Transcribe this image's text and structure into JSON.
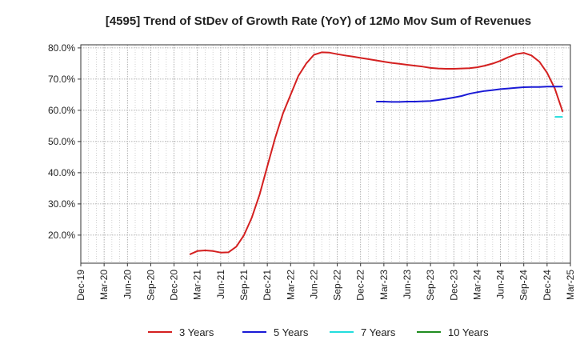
{
  "chart_data": {
    "type": "line",
    "title": "[4595]  Trend of StDev of Growth Rate (YoY) of 12Mo Mov Sum of Revenues",
    "xlabel": "",
    "ylabel": "",
    "categories": [
      "Dec-19",
      "Mar-20",
      "Jun-20",
      "Sep-20",
      "Dec-20",
      "Mar-21",
      "Jun-21",
      "Sep-21",
      "Dec-21",
      "Mar-22",
      "Jun-22",
      "Sep-22",
      "Dec-22",
      "Mar-23",
      "Jun-23",
      "Sep-23",
      "Dec-23",
      "Mar-24",
      "Jun-24",
      "Sep-24",
      "Dec-24",
      "Mar-25"
    ],
    "ylim": [
      11,
      81
    ],
    "yticks": [
      20,
      30,
      40,
      50,
      60,
      70,
      80
    ],
    "ytick_labels": [
      "20.0%",
      "30.0%",
      "40.0%",
      "50.0%",
      "60.0%",
      "70.0%",
      "80.0%"
    ],
    "grid": true,
    "legend_position": "bottom",
    "series": [
      {
        "name": "3 Years",
        "color": "#d42020",
        "points": [
          [
            4.67,
            13.8
          ],
          [
            5.0,
            14.9
          ],
          [
            5.33,
            15.1
          ],
          [
            5.67,
            14.9
          ],
          [
            6.0,
            14.4
          ],
          [
            6.33,
            14.5
          ],
          [
            6.67,
            16.3
          ],
          [
            7.0,
            20.0
          ],
          [
            7.33,
            25.5
          ],
          [
            7.67,
            33.0
          ],
          [
            8.0,
            42.0
          ],
          [
            8.33,
            51.0
          ],
          [
            8.67,
            59.0
          ],
          [
            9.0,
            65.0
          ],
          [
            9.33,
            71.0
          ],
          [
            9.67,
            75.0
          ],
          [
            10.0,
            77.8
          ],
          [
            10.33,
            78.6
          ],
          [
            10.67,
            78.5
          ],
          [
            11.0,
            78.0
          ],
          [
            11.33,
            77.6
          ],
          [
            11.67,
            77.2
          ],
          [
            12.0,
            76.8
          ],
          [
            12.33,
            76.4
          ],
          [
            12.67,
            76.0
          ],
          [
            13.0,
            75.6
          ],
          [
            13.33,
            75.2
          ],
          [
            13.67,
            74.9
          ],
          [
            14.0,
            74.6
          ],
          [
            14.33,
            74.3
          ],
          [
            14.67,
            74.0
          ],
          [
            15.0,
            73.6
          ],
          [
            15.33,
            73.4
          ],
          [
            15.67,
            73.3
          ],
          [
            16.0,
            73.3
          ],
          [
            16.33,
            73.4
          ],
          [
            16.67,
            73.5
          ],
          [
            17.0,
            73.8
          ],
          [
            17.33,
            74.3
          ],
          [
            17.67,
            75.0
          ],
          [
            18.0,
            75.9
          ],
          [
            18.33,
            77.0
          ],
          [
            18.67,
            78.0
          ],
          [
            19.0,
            78.4
          ],
          [
            19.33,
            77.6
          ],
          [
            19.67,
            75.6
          ],
          [
            20.0,
            72.0
          ],
          [
            20.33,
            67.0
          ],
          [
            20.67,
            59.5
          ]
        ]
      },
      {
        "name": "5 Years",
        "color": "#1a1ad6",
        "points": [
          [
            12.67,
            62.8
          ],
          [
            13.0,
            62.8
          ],
          [
            13.33,
            62.7
          ],
          [
            13.67,
            62.7
          ],
          [
            14.0,
            62.8
          ],
          [
            14.33,
            62.8
          ],
          [
            14.67,
            62.9
          ],
          [
            15.0,
            63.0
          ],
          [
            15.33,
            63.3
          ],
          [
            15.67,
            63.7
          ],
          [
            16.0,
            64.1
          ],
          [
            16.33,
            64.6
          ],
          [
            16.67,
            65.3
          ],
          [
            17.0,
            65.8
          ],
          [
            17.33,
            66.2
          ],
          [
            17.67,
            66.5
          ],
          [
            18.0,
            66.8
          ],
          [
            18.33,
            67.0
          ],
          [
            18.67,
            67.2
          ],
          [
            19.0,
            67.4
          ],
          [
            19.33,
            67.5
          ],
          [
            19.67,
            67.5
          ],
          [
            20.0,
            67.6
          ],
          [
            20.33,
            67.6
          ],
          [
            20.67,
            67.6
          ]
        ]
      },
      {
        "name": "7 Years",
        "color": "#22dddd",
        "points": [
          [
            20.33,
            57.9
          ],
          [
            20.67,
            57.9
          ]
        ]
      },
      {
        "name": "10 Years",
        "color": "#1f8c1f",
        "points": []
      }
    ]
  }
}
